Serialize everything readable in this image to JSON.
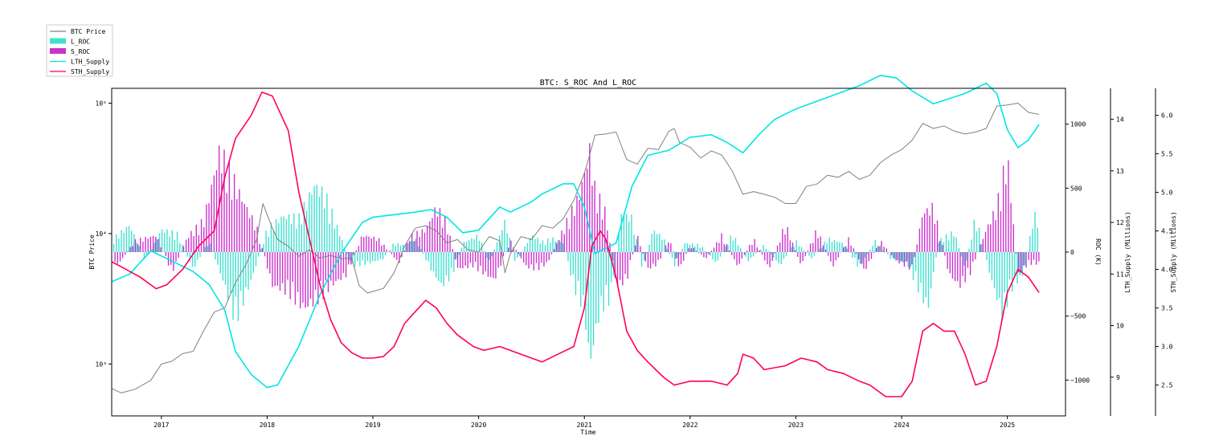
{
  "chart_data": {
    "type": "line",
    "title": "BTC: S_ROC And L_ROC",
    "xlabel": "Time",
    "x_ticks": [
      "2017",
      "2018",
      "2019",
      "2020",
      "2021",
      "2022",
      "2023",
      "2024",
      "2025"
    ],
    "x_range": [
      2016.53,
      2025.55
    ],
    "axes": {
      "price": {
        "label": "BTC Price",
        "scale": "log",
        "range": [
          400,
          130000
        ],
        "ticks": [
          {
            "v": 1000,
            "label": "10³"
          },
          {
            "v": 10000,
            "label": "10⁴"
          },
          {
            "v": 100000,
            "label": "10⁵"
          }
        ]
      },
      "roc": {
        "label": "ROC (K)",
        "scale": "linear",
        "range": [
          -1280,
          1280
        ],
        "ticks": [
          -1000,
          -500,
          0,
          500,
          1000
        ]
      },
      "lth": {
        "label": "LTH_Supply (Millions)",
        "scale": "linear",
        "range": [
          8.25,
          14.6
        ],
        "ticks": [
          9,
          10,
          11,
          12,
          13,
          14
        ]
      },
      "sth": {
        "label": "STH_Supply (Millions)",
        "scale": "linear",
        "range": [
          2.1,
          6.35
        ],
        "ticks": [
          "2.5",
          "3.0",
          "3.5",
          "4.0",
          "4.5",
          "5.0",
          "5.5",
          "6.0"
        ]
      }
    },
    "legend": {
      "placement": "top-left",
      "entries": [
        {
          "name": "BTC Price",
          "kind": "line",
          "color": "#808080"
        },
        {
          "name": "L_ROC",
          "kind": "bar",
          "color": "#40e0d0"
        },
        {
          "name": "S_ROC",
          "kind": "bar",
          "color": "#cc33cc"
        },
        {
          "name": "LTH_Supply",
          "kind": "line",
          "color": "#00e5e5"
        },
        {
          "name": "STH_Supply",
          "kind": "line",
          "color": "#ff0055"
        }
      ]
    },
    "series": [
      {
        "name": "BTC Price",
        "axis": "price",
        "color": "#808080",
        "x": [
          2016.53,
          2016.62,
          2016.75,
          2016.9,
          2017.0,
          2017.1,
          2017.2,
          2017.3,
          2017.4,
          2017.5,
          2017.6,
          2017.7,
          2017.8,
          2017.9,
          2017.96,
          2018.0,
          2018.05,
          2018.1,
          2018.2,
          2018.3,
          2018.4,
          2018.5,
          2018.6,
          2018.7,
          2018.8,
          2018.87,
          2018.95,
          2019.0,
          2019.1,
          2019.2,
          2019.3,
          2019.4,
          2019.5,
          2019.6,
          2019.7,
          2019.8,
          2019.9,
          2020.0,
          2020.1,
          2020.2,
          2020.25,
          2020.3,
          2020.4,
          2020.5,
          2020.6,
          2020.7,
          2020.8,
          2020.9,
          2021.0,
          2021.05,
          2021.1,
          2021.2,
          2021.3,
          2021.4,
          2021.5,
          2021.6,
          2021.7,
          2021.8,
          2021.85,
          2021.9,
          2022.0,
          2022.1,
          2022.2,
          2022.3,
          2022.4,
          2022.5,
          2022.6,
          2022.7,
          2022.8,
          2022.9,
          2023.0,
          2023.1,
          2023.2,
          2023.3,
          2023.4,
          2023.5,
          2023.6,
          2023.7,
          2023.8,
          2023.9,
          2024.0,
          2024.1,
          2024.2,
          2024.3,
          2024.4,
          2024.5,
          2024.6,
          2024.7,
          2024.8,
          2024.9,
          2025.0,
          2025.1,
          2025.2,
          2025.3
        ],
        "y": [
          650,
          600,
          640,
          750,
          1000,
          1050,
          1200,
          1250,
          1800,
          2500,
          2700,
          4200,
          5800,
          9000,
          17000,
          14000,
          11000,
          9000,
          8000,
          6700,
          7500,
          6500,
          6800,
          6400,
          6500,
          4000,
          3500,
          3600,
          3800,
          5000,
          8000,
          11000,
          11500,
          10500,
          8500,
          9000,
          7500,
          7200,
          9500,
          8800,
          5000,
          7000,
          9500,
          9000,
          11500,
          11000,
          13000,
          18000,
          29000,
          40000,
          57000,
          58000,
          60000,
          37000,
          34000,
          45000,
          44000,
          61000,
          64000,
          50000,
          46000,
          38000,
          43000,
          40000,
          30000,
          20000,
          21000,
          20000,
          19000,
          17000,
          17000,
          23000,
          24000,
          28000,
          27000,
          30000,
          26000,
          28000,
          35000,
          40000,
          44000,
          52000,
          70000,
          64000,
          67000,
          61000,
          58000,
          60000,
          64000,
          95000,
          97000,
          100000,
          85000,
          82000
        ]
      },
      {
        "name": "LTH_Supply",
        "axis": "lth",
        "color": "#00e5e5",
        "x": [
          2016.53,
          2016.7,
          2016.9,
          2017.1,
          2017.3,
          2017.45,
          2017.6,
          2017.7,
          2017.85,
          2018.0,
          2018.1,
          2018.3,
          2018.5,
          2018.7,
          2018.9,
          2019.0,
          2019.2,
          2019.4,
          2019.55,
          2019.7,
          2019.85,
          2020.0,
          2020.2,
          2020.3,
          2020.5,
          2020.6,
          2020.8,
          2020.9,
          2021.0,
          2021.1,
          2021.3,
          2021.45,
          2021.6,
          2021.8,
          2022.0,
          2022.2,
          2022.35,
          2022.5,
          2022.65,
          2022.8,
          2023.0,
          2023.2,
          2023.4,
          2023.6,
          2023.8,
          2023.95,
          2024.1,
          2024.3,
          2024.45,
          2024.6,
          2024.7,
          2024.8,
          2024.9,
          2025.0,
          2025.1,
          2025.2,
          2025.3
        ],
        "y": [
          10.85,
          11.0,
          11.45,
          11.25,
          11.05,
          10.8,
          10.3,
          9.5,
          9.05,
          8.8,
          8.85,
          9.6,
          10.6,
          11.4,
          12.0,
          12.1,
          12.15,
          12.2,
          12.25,
          12.1,
          11.8,
          11.85,
          12.3,
          12.2,
          12.4,
          12.55,
          12.75,
          12.75,
          12.3,
          11.4,
          11.6,
          12.7,
          13.3,
          13.4,
          13.65,
          13.7,
          13.55,
          13.35,
          13.7,
          14.0,
          14.2,
          14.35,
          14.5,
          14.65,
          14.85,
          14.8,
          14.55,
          14.3,
          14.4,
          14.5,
          14.6,
          14.7,
          14.5,
          13.8,
          13.45,
          13.6,
          13.9
        ]
      },
      {
        "name": "STH_Supply",
        "axis": "sth",
        "color": "#ff0055",
        "x": [
          2016.53,
          2016.6,
          2016.8,
          2016.95,
          2017.05,
          2017.2,
          2017.35,
          2017.5,
          2017.6,
          2017.7,
          2017.85,
          2017.95,
          2018.05,
          2018.2,
          2018.3,
          2018.4,
          2018.5,
          2018.6,
          2018.7,
          2018.8,
          2018.9,
          2019.0,
          2019.1,
          2019.2,
          2019.3,
          2019.5,
          2019.6,
          2019.7,
          2019.8,
          2019.95,
          2020.05,
          2020.2,
          2020.3,
          2020.5,
          2020.6,
          2020.75,
          2020.9,
          2021.0,
          2021.07,
          2021.15,
          2021.2,
          2021.3,
          2021.4,
          2021.5,
          2021.6,
          2021.75,
          2021.85,
          2022.0,
          2022.2,
          2022.35,
          2022.45,
          2022.5,
          2022.6,
          2022.7,
          2022.9,
          2023.05,
          2023.2,
          2023.3,
          2023.45,
          2023.6,
          2023.7,
          2023.85,
          2024.0,
          2024.1,
          2024.2,
          2024.3,
          2024.4,
          2024.5,
          2024.6,
          2024.7,
          2024.8,
          2024.9,
          2025.0,
          2025.1,
          2025.2,
          2025.3
        ],
        "y": [
          4.1,
          4.05,
          3.9,
          3.75,
          3.8,
          4.0,
          4.3,
          4.5,
          5.2,
          5.7,
          6.0,
          6.3,
          6.25,
          5.8,
          5.0,
          4.4,
          3.8,
          3.35,
          3.05,
          2.92,
          2.85,
          2.85,
          2.87,
          3.0,
          3.3,
          3.6,
          3.5,
          3.3,
          3.15,
          3.0,
          2.95,
          3.0,
          2.95,
          2.85,
          2.8,
          2.9,
          3.0,
          3.5,
          4.3,
          4.5,
          4.4,
          3.9,
          3.2,
          2.95,
          2.8,
          2.6,
          2.5,
          2.55,
          2.55,
          2.5,
          2.65,
          2.9,
          2.85,
          2.7,
          2.75,
          2.85,
          2.8,
          2.7,
          2.65,
          2.55,
          2.5,
          2.35,
          2.35,
          2.55,
          3.2,
          3.3,
          3.2,
          3.2,
          2.9,
          2.5,
          2.55,
          3.0,
          3.7,
          4.0,
          3.9,
          3.7
        ]
      },
      {
        "name": "L_ROC",
        "axis": "roc",
        "kind": "bar",
        "color": "#40e0d0",
        "x": [
          2016.55,
          2016.7,
          2016.85,
          2017.0,
          2017.15,
          2017.3,
          2017.45,
          2017.6,
          2017.7,
          2017.85,
          2018.0,
          2018.15,
          2018.3,
          2018.45,
          2018.55,
          2018.65,
          2018.8,
          2018.95,
          2019.1,
          2019.2,
          2019.3,
          2019.4,
          2019.55,
          2019.65,
          2019.75,
          2019.85,
          2020.0,
          2020.1,
          2020.25,
          2020.35,
          2020.5,
          2020.6,
          2020.7,
          2020.8,
          2020.9,
          2021.0,
          2021.05,
          2021.15,
          2021.25,
          2021.35,
          2021.45,
          2021.55,
          2021.65,
          2021.75,
          2021.85,
          2021.95,
          2022.1,
          2022.25,
          2022.4,
          2022.55,
          2022.7,
          2022.85,
          2023.0,
          2023.15,
          2023.3,
          2023.45,
          2023.6,
          2023.75,
          2023.9,
          2024.05,
          2024.15,
          2024.25,
          2024.35,
          2024.5,
          2024.6,
          2024.7,
          2024.85,
          2024.95,
          2025.05,
          2025.15,
          2025.25
        ],
        "y": [
          120,
          240,
          -80,
          200,
          160,
          -150,
          100,
          -300,
          -600,
          -250,
          200,
          320,
          300,
          600,
          500,
          250,
          -120,
          -100,
          -60,
          80,
          60,
          120,
          -150,
          -300,
          -200,
          80,
          150,
          -100,
          280,
          -100,
          150,
          90,
          120,
          80,
          -300,
          -500,
          -1000,
          -500,
          -400,
          350,
          300,
          -150,
          200,
          120,
          -120,
          80,
          60,
          -100,
          160,
          -80,
          60,
          -120,
          100,
          -60,
          120,
          80,
          -140,
          100,
          -60,
          -100,
          -300,
          -500,
          100,
          180,
          -150,
          320,
          -250,
          -550,
          -300,
          -200,
          320
        ]
      },
      {
        "name": "S_ROC",
        "axis": "roc",
        "kind": "bar",
        "color": "#cc33cc",
        "x": [
          2016.6,
          2016.75,
          2016.95,
          2017.1,
          2017.25,
          2017.4,
          2017.55,
          2017.65,
          2017.75,
          2017.9,
          2018.05,
          2018.2,
          2018.35,
          2018.5,
          2018.6,
          2018.75,
          2018.9,
          2019.05,
          2019.25,
          2019.35,
          2019.5,
          2019.6,
          2019.7,
          2019.8,
          2019.95,
          2020.15,
          2020.3,
          2020.45,
          2020.55,
          2020.65,
          2020.85,
          2020.95,
          2021.05,
          2021.1,
          2021.2,
          2021.3,
          2021.4,
          2021.5,
          2021.6,
          2021.7,
          2021.8,
          2021.9,
          2022.0,
          2022.15,
          2022.3,
          2022.45,
          2022.6,
          2022.75,
          2022.9,
          2023.05,
          2023.2,
          2023.35,
          2023.5,
          2023.65,
          2023.8,
          2023.95,
          2024.1,
          2024.2,
          2024.3,
          2024.45,
          2024.55,
          2024.65,
          2024.8,
          2024.9,
          2025.0,
          2025.1,
          2025.2
        ],
        "y": [
          -100,
          100,
          150,
          -180,
          140,
          280,
          900,
          700,
          500,
          220,
          -300,
          -350,
          -500,
          -400,
          -300,
          -200,
          150,
          120,
          -100,
          140,
          200,
          400,
          250,
          -150,
          -120,
          -250,
          100,
          -130,
          -150,
          -100,
          300,
          500,
          900,
          550,
          350,
          -300,
          -250,
          150,
          -150,
          -100,
          120,
          -150,
          60,
          -60,
          150,
          -130,
          120,
          -150,
          250,
          -120,
          200,
          -130,
          120,
          -170,
          100,
          -80,
          -150,
          350,
          400,
          -200,
          -300,
          -180,
          200,
          400,
          850,
          -200,
          -100
        ]
      }
    ]
  }
}
